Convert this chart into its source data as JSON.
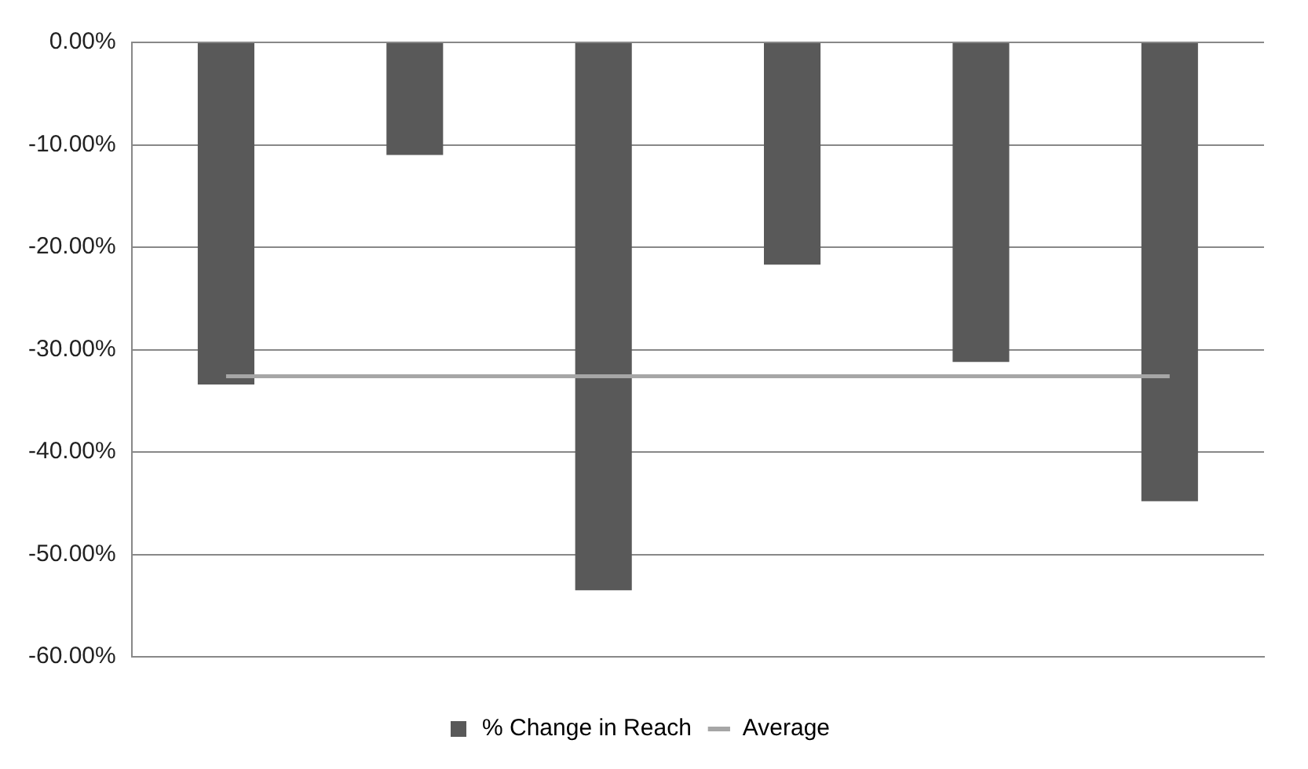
{
  "chart_data": {
    "type": "bar",
    "categories": [
      null,
      null,
      null,
      null,
      null,
      null
    ],
    "series": [
      {
        "name": "% Change in Reach",
        "color": "#595959",
        "values": [
          -33.4,
          -11.0,
          -53.5,
          -21.7,
          -31.2,
          -44.8
        ]
      },
      {
        "name": "Average",
        "type": "line",
        "color": "#a6a6a6",
        "values": [
          -32.6,
          -32.6,
          -32.6,
          -32.6,
          -32.6,
          -32.6
        ]
      }
    ],
    "ylim": [
      -60,
      0
    ],
    "yticks": [
      {
        "value": 0,
        "label": "0.00%"
      },
      {
        "value": -10,
        "label": "-10.00%"
      },
      {
        "value": -20,
        "label": "-20.00%"
      },
      {
        "value": -30,
        "label": "-30.00%"
      },
      {
        "value": -40,
        "label": "-40.00%"
      },
      {
        "value": -50,
        "label": "-50.00%"
      },
      {
        "value": -60,
        "label": "-60.00%"
      }
    ],
    "grid": "y",
    "legend": "bottom",
    "marker": "none",
    "line_style": "solid"
  }
}
